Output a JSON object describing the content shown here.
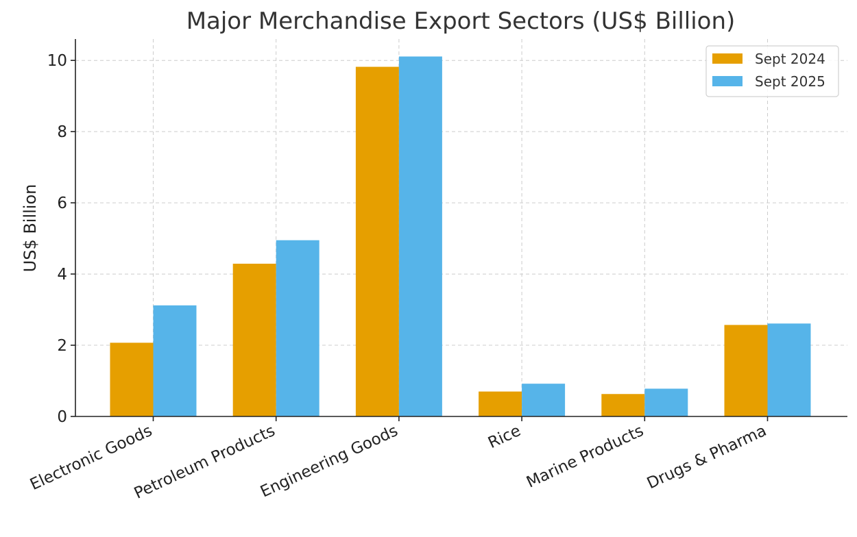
{
  "chart_data": {
    "type": "bar",
    "title": "Major Merchandise Export Sectors (US$ Billion)",
    "xlabel": "",
    "ylabel": "US$ Billion",
    "categories": [
      "Electronic Goods",
      "Petroleum Products",
      "Engineering Goods",
      "Rice",
      "Marine Products",
      "Drugs & Pharma"
    ],
    "series": [
      {
        "name": "Sept 2024",
        "color": "#E69F00",
        "values": [
          2.07,
          4.29,
          9.82,
          0.7,
          0.63,
          2.57
        ]
      },
      {
        "name": "Sept 2025",
        "color": "#56B4E9",
        "values": [
          3.12,
          4.95,
          10.11,
          0.92,
          0.78,
          2.61
        ]
      }
    ],
    "ylim": [
      0,
      10.6
    ],
    "yticks": [
      0,
      2,
      4,
      6,
      8,
      10
    ],
    "grid": true,
    "legend_position": "top-right"
  }
}
